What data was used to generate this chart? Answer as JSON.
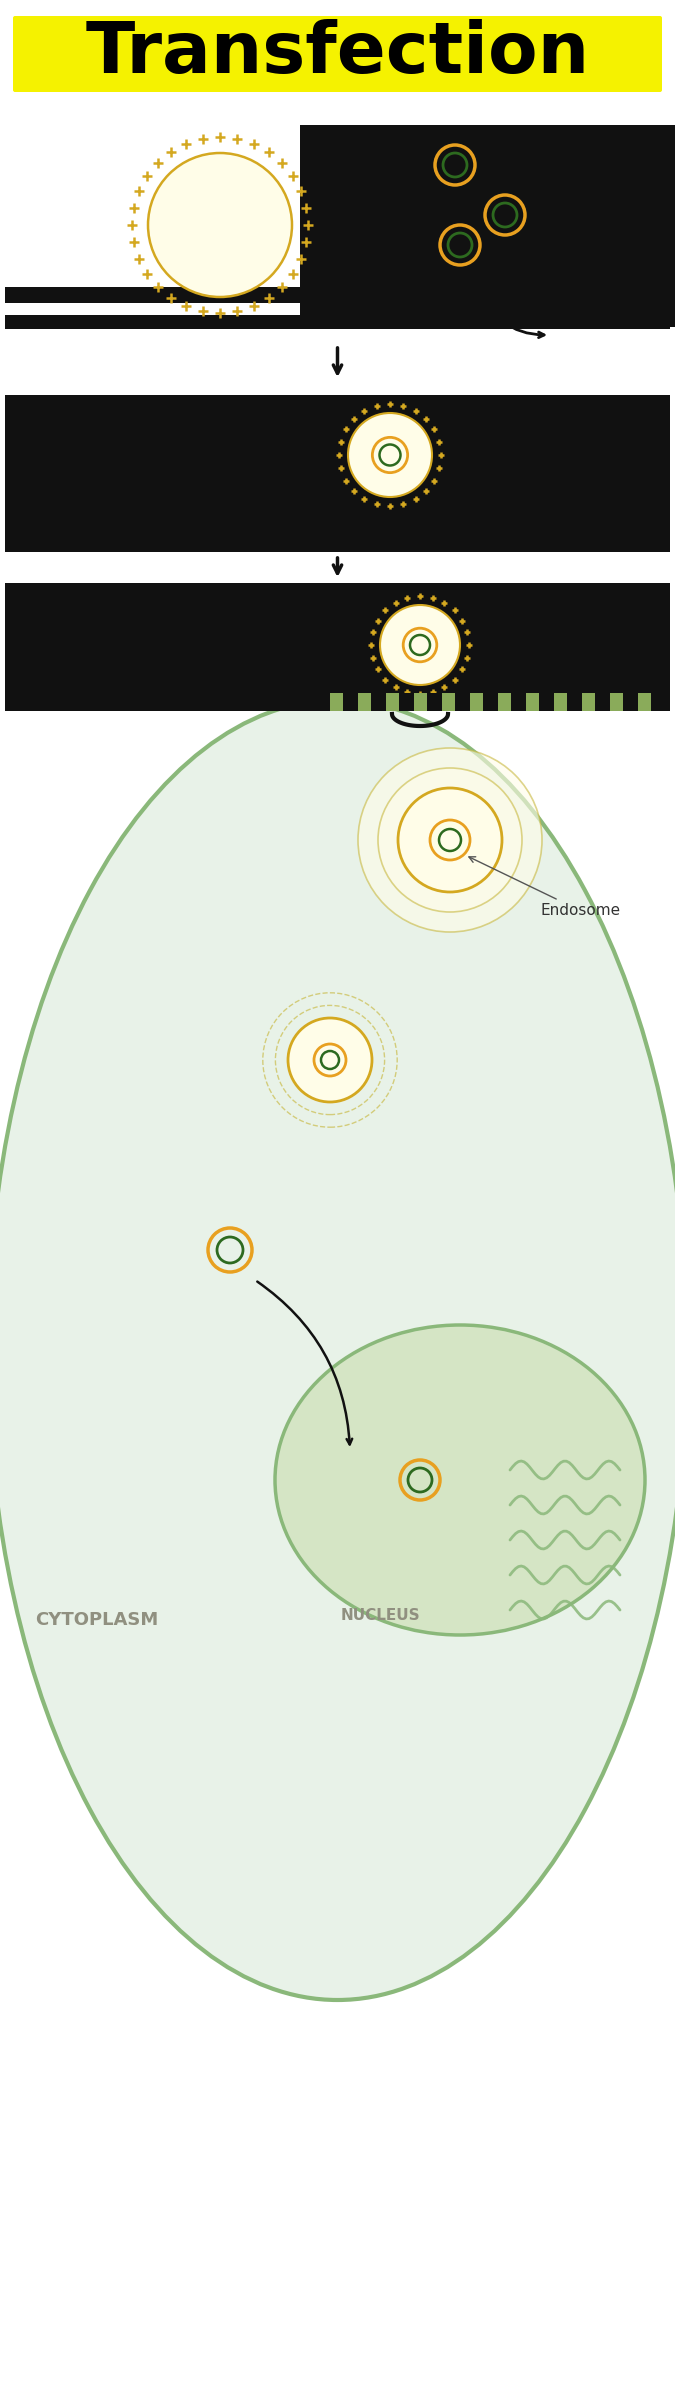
{
  "title": "Transfection",
  "title_bg": "#F5F200",
  "title_fontsize": 52,
  "bg_color": "#FFFFFF",
  "black_bg": "#111111",
  "cell_fill": "#E8F2E8",
  "cell_border": "#8AB87A",
  "nucleus_fill": "#D5E5C5",
  "nucleus_border": "#8AB87A",
  "lipid_fill": "#FFFDE8",
  "lipid_border": "#D4A820",
  "plasmid_orange": "#E8A020",
  "plasmid_green": "#2D6A1F",
  "endosome_label": "Endosome",
  "cytoplasm_label": "CYTOPLASM",
  "nucleus_label": "NUCLEUS",
  "mem_green": "#8AAB5A",
  "arrow_color": "#111111",
  "endosome_ring1": "#D4A820",
  "endosome_ring2": "#C8B840"
}
